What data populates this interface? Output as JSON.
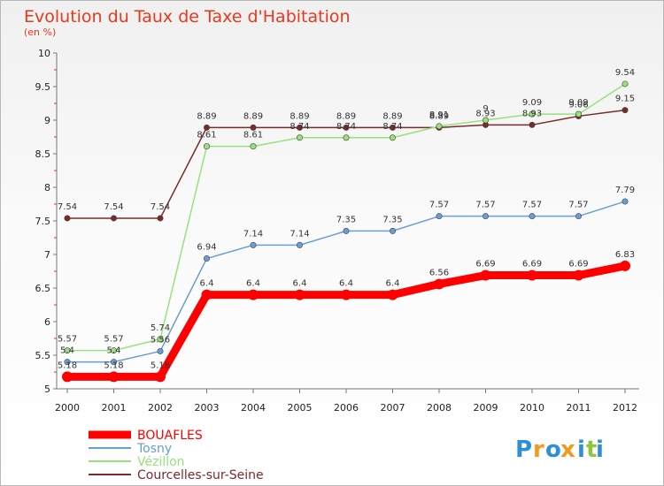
{
  "chart_data": {
    "type": "line",
    "title": "Evolution du Taux de Taxe d'Habitation",
    "subtitle": "(en %)",
    "xlabel": "",
    "ylabel": "",
    "x": [
      "2000",
      "2001",
      "2002",
      "2003",
      "2004",
      "2005",
      "2006",
      "2007",
      "2008",
      "2009",
      "2010",
      "2011",
      "2012"
    ],
    "ylim": [
      5,
      10
    ],
    "yticks": [
      "5",
      "5.5",
      "6",
      "6.5",
      "7",
      "7.5",
      "8",
      "8.5",
      "9",
      "9.5",
      "10"
    ],
    "grid": false,
    "legend_position": "bottom-left",
    "series": [
      {
        "name": "BOUAFLES",
        "color": "#ff0000",
        "values": [
          5.18,
          5.18,
          5.18,
          6.4,
          6.4,
          6.4,
          6.4,
          6.4,
          6.56,
          6.69,
          6.69,
          6.69,
          6.83
        ],
        "labels": [
          "5.18",
          "5.18",
          "5.18",
          "6.4",
          "6.4",
          "6.4",
          "6.4",
          "6.4",
          "6.56",
          "6.69",
          "6.69",
          "6.69",
          "6.83"
        ]
      },
      {
        "name": "Tosny",
        "color": "#6a9ed2",
        "values": [
          5.4,
          5.4,
          5.56,
          6.94,
          7.14,
          7.14,
          7.35,
          7.35,
          7.57,
          7.57,
          7.57,
          7.57,
          7.79
        ],
        "labels": [
          "5.4",
          "5.4",
          "5.56",
          "6.94",
          "7.14",
          "7.14",
          "7.35",
          "7.35",
          "7.57",
          "7.57",
          "7.57",
          "7.57",
          "7.79"
        ]
      },
      {
        "name": "Vézillon",
        "color": "#99e17a",
        "values": [
          5.57,
          5.57,
          5.74,
          8.61,
          8.61,
          8.74,
          8.74,
          8.74,
          8.91,
          9.0,
          9.09,
          9.09,
          9.54
        ],
        "labels": [
          "5.57",
          "5.57",
          "5.74",
          "8.61",
          "8.61",
          "8.74",
          "8.74",
          "8.74",
          "8.91",
          "9",
          "9.09",
          "9.09",
          "9.54"
        ]
      },
      {
        "name": "Courcelles-sur-Seine",
        "color": "#7a2a2a",
        "values": [
          7.54,
          7.54,
          7.54,
          8.89,
          8.89,
          8.89,
          8.89,
          8.89,
          8.89,
          8.93,
          8.93,
          9.06,
          9.15
        ],
        "labels": [
          "7.54",
          "7.54",
          "7.54",
          "8.89",
          "8.89",
          "8.89",
          "8.89",
          "8.89",
          "8.89",
          "8.93",
          "8.93",
          "9.06",
          "9.15"
        ]
      }
    ]
  },
  "brand": {
    "letters": [
      "P",
      "r",
      "o",
      "x",
      "i",
      "t",
      "i"
    ],
    "colors": [
      "#2f8fd6",
      "#f39a1e",
      "#2f8fd6",
      "#f39a1e",
      "#2f8fd6",
      "#8fc53c",
      "#2f8fd6"
    ]
  }
}
